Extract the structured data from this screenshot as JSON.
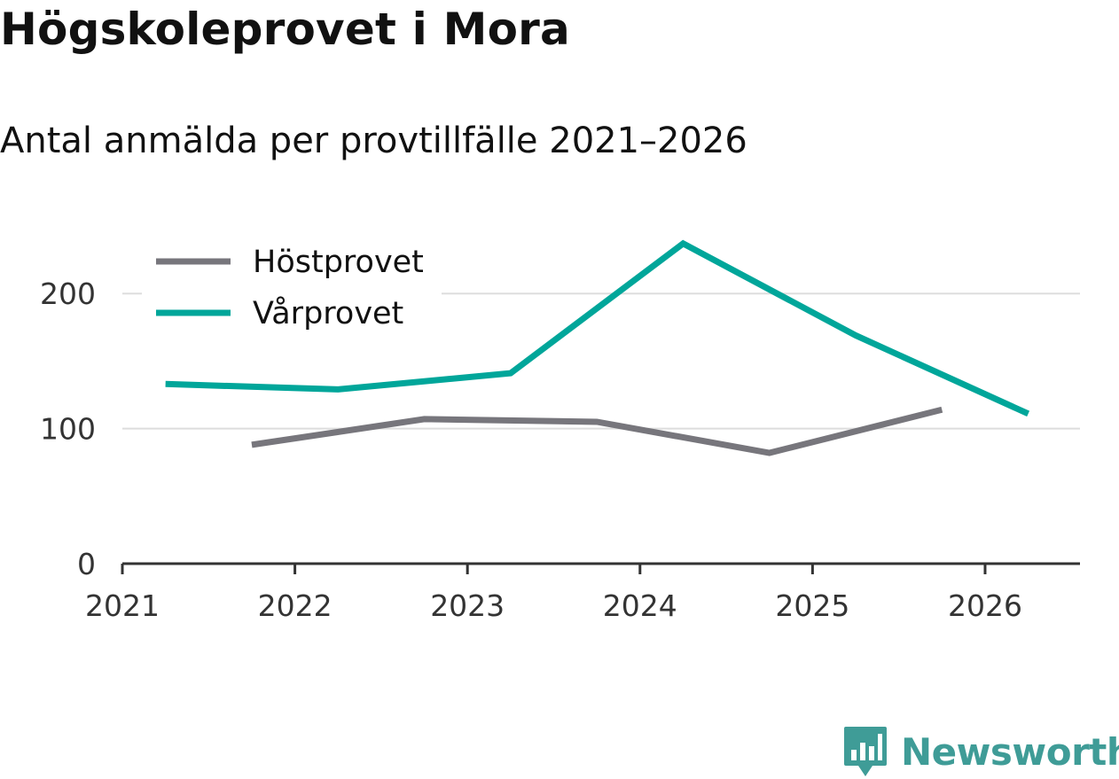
{
  "header": {
    "title": "Högskoleprovet i Mora",
    "subtitle": "Antal anmälda per provtillfälle 2021–2026"
  },
  "brand": {
    "name": "Newsworthy",
    "color": "#3f9c97"
  },
  "chart_data": {
    "type": "line",
    "title": "Högskoleprovet i Mora",
    "subtitle": "Antal anmälda per provtillfälle 2021–2026",
    "xlabel": "",
    "ylabel": "",
    "xlim": [
      2021,
      2026.55
    ],
    "ylim": [
      0,
      250
    ],
    "x_ticks": [
      2021,
      2022,
      2023,
      2024,
      2025,
      2026
    ],
    "x_tick_labels": [
      "2021",
      "2022",
      "2023",
      "2024",
      "2025",
      "2026"
    ],
    "y_ticks": [
      0,
      100,
      200
    ],
    "y_tick_labels": [
      "0",
      "100",
      "200"
    ],
    "grid": true,
    "legend_position": "top-left",
    "series": [
      {
        "name": "Höstprovet",
        "color": "#77767c",
        "x": [
          2021.75,
          2022.75,
          2023.75,
          2024.75,
          2025.75
        ],
        "values": [
          88,
          107,
          105,
          82,
          114
        ]
      },
      {
        "name": "Vårprovet",
        "color": "#00a69a",
        "x": [
          2021.25,
          2022.25,
          2023.25,
          2024.25,
          2025.25,
          2026.25
        ],
        "values": [
          133,
          129,
          141,
          237,
          169,
          111
        ]
      }
    ]
  }
}
